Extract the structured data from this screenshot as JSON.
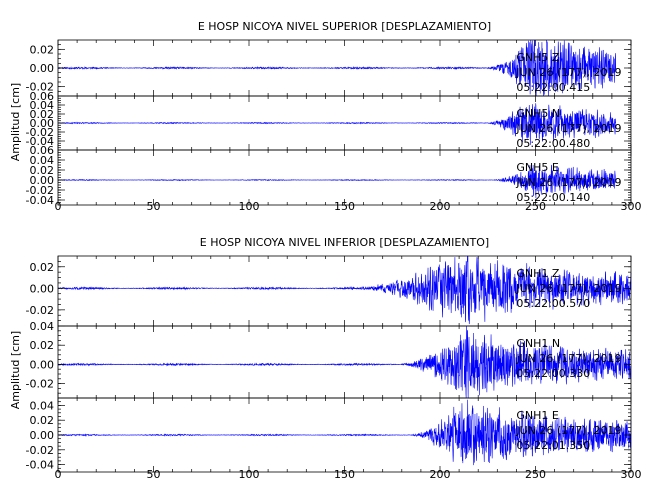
{
  "chart_data": [
    {
      "type": "line",
      "title": "E HOSP NICOYA NIVEL SUPERIOR [DESPLAZAMIENTO]",
      "ylabel": "Amplitud [cm]",
      "xlabel": "",
      "xlim": [
        0,
        300
      ],
      "xticks": [
        0,
        50,
        100,
        150,
        200,
        250,
        300
      ],
      "grid": false,
      "series": [
        {
          "station": "GNH5",
          "component": "Z",
          "date": "JUN 26 (177), 2019",
          "time": "05:22:00.415",
          "ylim": [
            -0.03,
            0.03
          ],
          "yticks": [
            -0.02,
            0.0,
            0.02
          ],
          "ytick_labels": [
            "-0.02",
            "0.00",
            "0.02"
          ],
          "x_end": 292,
          "onset": 225,
          "peak_time": 249,
          "peak_amp": 0.032,
          "noise_amp": 0.0006,
          "seed": 11
        },
        {
          "station": "GNH5",
          "component": "N",
          "date": "JUN 26 (177), 2019",
          "time": "05:22:00.480",
          "ylim": [
            -0.06,
            0.06
          ],
          "yticks": [
            -0.04,
            -0.02,
            0.0,
            0.02,
            0.04,
            0.06
          ],
          "ytick_labels": [
            "-0.04",
            "-0.02",
            "0.00",
            "0.02",
            "0.04",
            "0.06"
          ],
          "x_end": 292,
          "onset": 225,
          "peak_time": 245,
          "peak_amp": 0.045,
          "noise_amp": 0.0008,
          "seed": 23
        },
        {
          "station": "GNH5",
          "component": "E",
          "date": "JUN 26 (177), 2019",
          "time": "05:22:00.140",
          "ylim": [
            -0.05,
            0.06
          ],
          "yticks": [
            -0.04,
            -0.02,
            0.0,
            0.02,
            0.04,
            0.06
          ],
          "ytick_labels": [
            "-0.04",
            "-0.02",
            "0.00",
            "0.02",
            "0.04",
            "0.06"
          ],
          "x_end": 292,
          "onset": 228,
          "peak_time": 250,
          "peak_amp": 0.03,
          "noise_amp": 0.0006,
          "seed": 37
        }
      ]
    },
    {
      "type": "line",
      "title": "E HOSP NICOYA NIVEL INFERIOR [DESPLAZAMIENTO]",
      "ylabel": "Amplitud [cm]",
      "xlabel": "",
      "xlim": [
        0,
        300
      ],
      "xticks": [
        0,
        50,
        100,
        150,
        200,
        250,
        300
      ],
      "grid": false,
      "series": [
        {
          "station": "GNH1",
          "component": "Z",
          "date": "JUN 26 (177), 2019",
          "time": "05:22:00.570",
          "ylim": [
            -0.035,
            0.03
          ],
          "yticks": [
            -0.02,
            0.0,
            0.02
          ],
          "ytick_labels": [
            "-0.02",
            "0.00",
            "0.02"
          ],
          "x_end": 300,
          "onset": 155,
          "peak_time": 212,
          "peak_amp": 0.03,
          "noise_amp": 0.0006,
          "seed": 51
        },
        {
          "station": "GNH1",
          "component": "N",
          "date": "JUN 26 (177), 2019",
          "time": "05:22:00.330",
          "ylim": [
            -0.035,
            0.04
          ],
          "yticks": [
            -0.02,
            0.0,
            0.02,
            0.04
          ],
          "ytick_labels": [
            "-0.02",
            "0.00",
            "0.02",
            "0.04"
          ],
          "x_end": 300,
          "onset": 180,
          "peak_time": 212,
          "peak_amp": 0.033,
          "noise_amp": 0.0006,
          "seed": 67
        },
        {
          "station": "GNH1",
          "component": "E",
          "date": "JUN 26 (177), 2019",
          "time": "05:22:01.350",
          "ylim": [
            -0.05,
            0.05
          ],
          "yticks": [
            -0.04,
            -0.02,
            0.0,
            0.02,
            0.04
          ],
          "ytick_labels": [
            "-0.04",
            "-0.02",
            "0.00",
            "0.02",
            "0.04"
          ],
          "x_end": 300,
          "onset": 185,
          "peak_time": 212,
          "peak_amp": 0.045,
          "noise_amp": 0.0006,
          "seed": 83
        }
      ]
    }
  ],
  "colors": {
    "trace": "#0000ff",
    "axis": "#000000"
  }
}
